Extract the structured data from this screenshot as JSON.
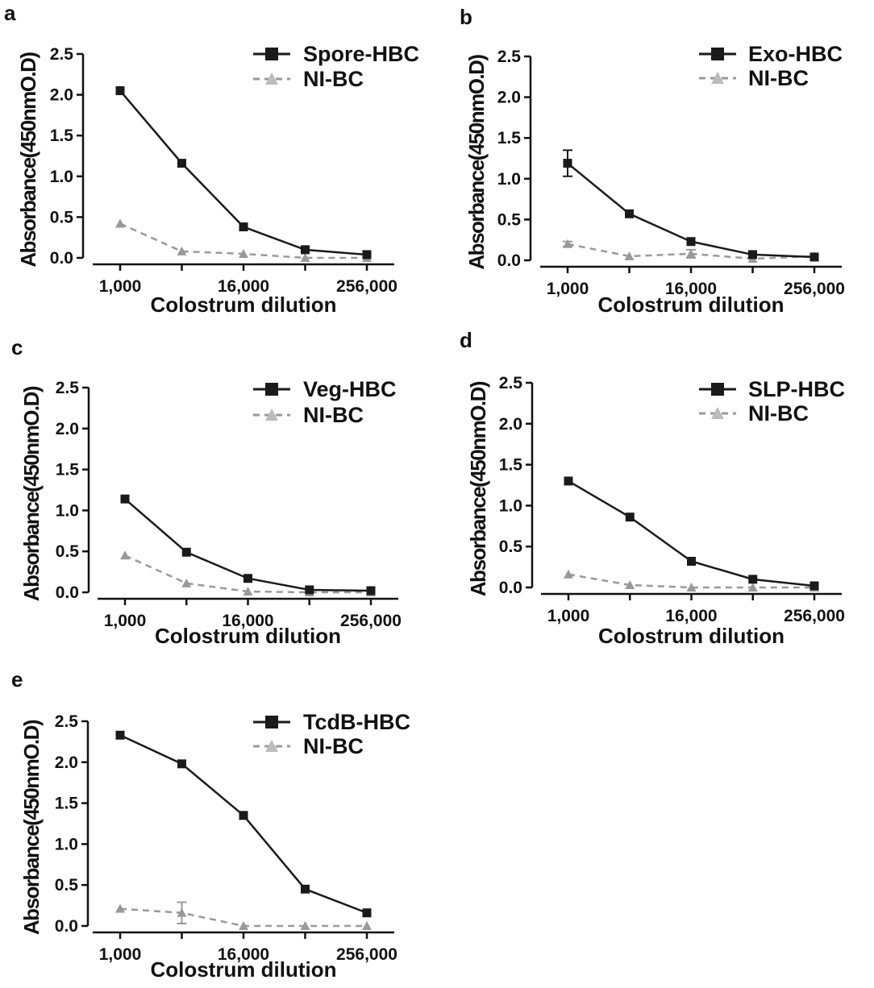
{
  "chart_data": [
    {
      "panel": "a",
      "type": "line",
      "categories": [
        "1,000",
        "",
        "16,000",
        "",
        "256,000"
      ],
      "xlabel": "Colostrum dilution",
      "ylabel": "Absorbance(450nmO.D)",
      "ylim": [
        0,
        2.5
      ],
      "yticks": [
        "0.0",
        "0.5",
        "1.0",
        "1.5",
        "2.0",
        "2.5"
      ],
      "legend_position": "top-right",
      "series": [
        {
          "name": "Spore-HBC",
          "values": [
            2.05,
            1.16,
            0.38,
            0.1,
            0.04
          ],
          "errors": [
            0,
            0,
            0,
            0,
            0
          ],
          "color": "#1a1a1a",
          "dash": false,
          "marker": "square"
        },
        {
          "name": "NI-BC",
          "values": [
            0.42,
            0.08,
            0.05,
            0.0,
            0.0
          ],
          "errors": [
            0,
            0,
            0,
            0,
            0
          ],
          "color": "#999999",
          "dash": true,
          "marker": "triangle"
        }
      ]
    },
    {
      "panel": "b",
      "type": "line",
      "categories": [
        "1,000",
        "",
        "16,000",
        "",
        "256,000"
      ],
      "xlabel": "Colostrum dilution",
      "ylabel": "Absorbance(450nmO.D)",
      "ylim": [
        0,
        2.5
      ],
      "yticks": [
        "0.0",
        "0.5",
        "1.0",
        "1.5",
        "2.0",
        "2.5"
      ],
      "legend_position": "top-right",
      "series": [
        {
          "name": "Exo-HBC",
          "values": [
            1.19,
            0.57,
            0.23,
            0.07,
            0.04
          ],
          "errors": [
            0.16,
            0,
            0,
            0,
            0
          ],
          "color": "#1a1a1a",
          "dash": false,
          "marker": "square"
        },
        {
          "name": "NI-BC",
          "values": [
            0.2,
            0.05,
            0.08,
            0.02,
            0.05
          ],
          "errors": [
            0.03,
            0,
            0.05,
            0,
            0
          ],
          "color": "#999999",
          "dash": true,
          "marker": "triangle"
        }
      ]
    },
    {
      "panel": "c",
      "type": "line",
      "categories": [
        "1,000",
        "",
        "16,000",
        "",
        "256,000"
      ],
      "xlabel": "Colostrum dilution",
      "ylabel": "Absorbance(450nmO.D)",
      "ylim": [
        0,
        2.5
      ],
      "yticks": [
        "0.0",
        "0.5",
        "1.0",
        "1.5",
        "2.0",
        "2.5"
      ],
      "legend_position": "top-right",
      "series": [
        {
          "name": "Veg-HBC",
          "values": [
            1.14,
            0.49,
            0.17,
            0.03,
            0.02
          ],
          "errors": [
            0,
            0,
            0,
            0,
            0
          ],
          "color": "#1a1a1a",
          "dash": false,
          "marker": "square"
        },
        {
          "name": "NI-BC",
          "values": [
            0.45,
            0.11,
            0.01,
            0.0,
            0.0
          ],
          "errors": [
            0,
            0,
            0,
            0,
            0
          ],
          "color": "#999999",
          "dash": true,
          "marker": "triangle"
        }
      ]
    },
    {
      "panel": "d",
      "type": "line",
      "categories": [
        "1,000",
        "",
        "16,000",
        "",
        "256,000"
      ],
      "xlabel": "Colostrum dilution",
      "ylabel": "Absorbance(450nmO.D)",
      "ylim": [
        0,
        2.5
      ],
      "yticks": [
        "0.0",
        "0.5",
        "1.0",
        "1.5",
        "2.0",
        "2.5"
      ],
      "legend_position": "top-right",
      "series": [
        {
          "name": "SLP-HBC",
          "values": [
            1.3,
            0.86,
            0.32,
            0.1,
            0.02
          ],
          "errors": [
            0,
            0,
            0,
            0,
            0
          ],
          "color": "#1a1a1a",
          "dash": false,
          "marker": "square"
        },
        {
          "name": "NI-BC",
          "values": [
            0.16,
            0.03,
            0.0,
            0.0,
            0.0
          ],
          "errors": [
            0,
            0,
            0,
            0,
            0
          ],
          "color": "#999999",
          "dash": true,
          "marker": "triangle"
        }
      ]
    },
    {
      "panel": "e",
      "type": "line",
      "categories": [
        "1,000",
        "",
        "16,000",
        "",
        "256,000"
      ],
      "xlabel": "Colostrum dilution",
      "ylabel": "Absorbance(450nmO.D)",
      "ylim": [
        0,
        2.5
      ],
      "yticks": [
        "0.0",
        "0.5",
        "1.0",
        "1.5",
        "2.0",
        "2.5"
      ],
      "legend_position": "top-right",
      "series": [
        {
          "name": "TcdB-HBC",
          "values": [
            2.33,
            1.98,
            1.35,
            0.45,
            0.16
          ],
          "errors": [
            0,
            0,
            0,
            0,
            0
          ],
          "color": "#1a1a1a",
          "dash": false,
          "marker": "square"
        },
        {
          "name": "NI-BC",
          "values": [
            0.21,
            0.16,
            0.0,
            0.0,
            0.0
          ],
          "errors": [
            0,
            0.13,
            0,
            0,
            0
          ],
          "color": "#999999",
          "dash": true,
          "marker": "triangle"
        }
      ]
    }
  ]
}
